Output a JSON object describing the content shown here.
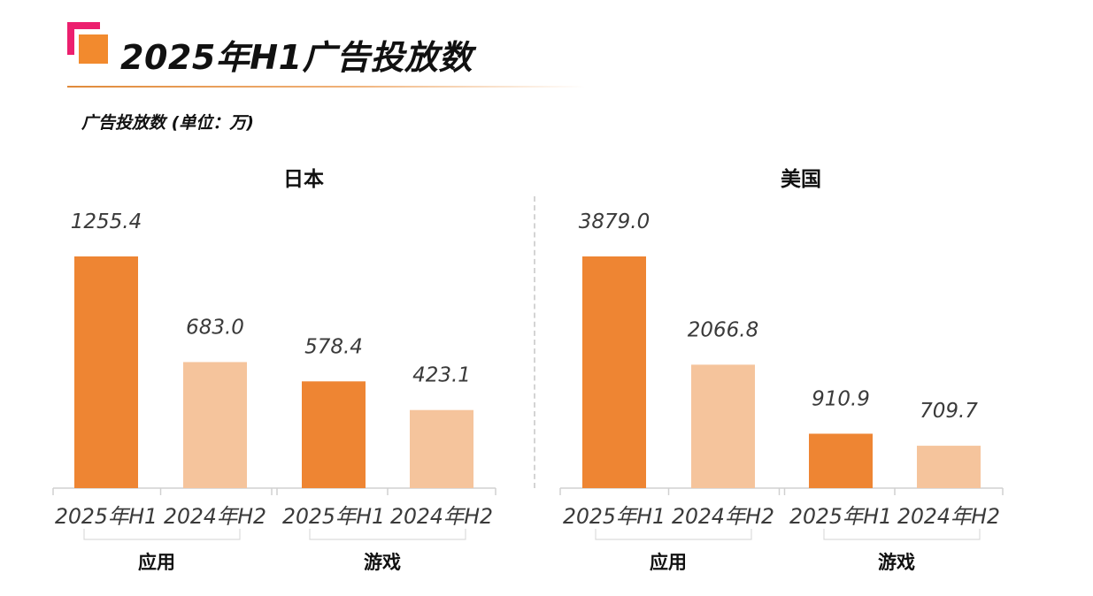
{
  "header": {
    "title": "2025年H1广告投放数",
    "subtitle": "广告投放数 (单位：万)"
  },
  "colors": {
    "accent_pink": "#ec1f6e",
    "accent_orange": "#f28a2e",
    "bar_2025H1": "#ee8533",
    "bar_2024H2": "#f5c49c"
  },
  "chart_data": [
    {
      "type": "bar",
      "title": "日本",
      "groups": [
        "应用",
        "游戏"
      ],
      "series_labels": [
        "2025年H1",
        "2024年H2"
      ],
      "values": [
        [
          1255.4,
          683.0
        ],
        [
          578.4,
          423.1
        ]
      ],
      "labels": [
        [
          "1255.4",
          "683.0"
        ],
        [
          "578.4",
          "423.1"
        ]
      ],
      "ylim": [
        0,
        1255.4
      ]
    },
    {
      "type": "bar",
      "title": "美国",
      "groups": [
        "应用",
        "游戏"
      ],
      "series_labels": [
        "2025年H1",
        "2024年H2"
      ],
      "values": [
        [
          3879.0,
          2066.8
        ],
        [
          910.9,
          709.7
        ]
      ],
      "labels": [
        [
          "3879.0",
          "2066.8"
        ],
        [
          "910.9",
          "709.7"
        ]
      ],
      "ylim": [
        0,
        3879.0
      ]
    }
  ]
}
